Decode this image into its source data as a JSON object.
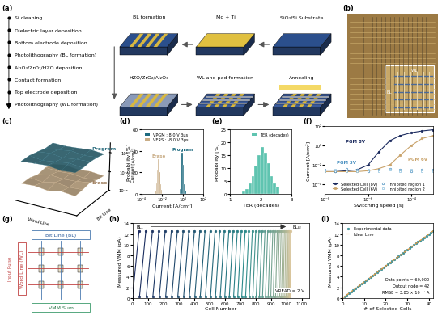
{
  "process": {
    "panel": "(a)",
    "steps": [
      "Si cleaning",
      "Dielectric layer deposition",
      "Bottom electrode deposition",
      "Photolithography (BL formation)",
      "Al₂O₃/ZrO₂/HZO deposition",
      "Contact formation",
      "Top electrode deposition",
      "Photolithography (WL formation)"
    ],
    "schematic_labels": [
      "BL formation",
      "Mo + Ti",
      "SiO₂/Si Substrate",
      "HZO/ZrO₂/Al₂O₃",
      "WL and pad formation",
      "Annealing"
    ]
  },
  "micrograph": {
    "panel": "(b)",
    "labels": [
      "WL",
      "BL"
    ]
  },
  "crossbar": {
    "panel": "(g)",
    "bit_line": "Bit Line (BL)",
    "word_line": "Word Line (WL)",
    "input": "Input Pulse",
    "output": "VMM Sum"
  },
  "chart_data": [
    {
      "panel": "(c)",
      "type": "surface3d",
      "xlabel": "Word Line",
      "ylabel": "Bit Line",
      "zlabel": "Current [A/cm²]",
      "log": true,
      "grid": false,
      "zlim": [
        0.0001,
        10
      ],
      "zticks": [
        {
          "value": 0.0001,
          "label": "10⁻⁴"
        },
        {
          "value": 0.01,
          "label": "10⁻²"
        },
        {
          "value": 1,
          "label": "10⁰"
        }
      ],
      "series": [
        {
          "name": "Program",
          "color": "#2e6f80",
          "values": [
            [
              0.9,
              1.1,
              1.3,
              0.8,
              1.0
            ],
            [
              1.2,
              0.7,
              1.0,
              1.4,
              0.9
            ],
            [
              1.0,
              1.3,
              0.8,
              1.1,
              1.2
            ],
            [
              0.8,
              1.0,
              1.5,
              0.9,
              1.1
            ],
            [
              1.1,
              0.9,
              1.0,
              1.2,
              0.8
            ]
          ]
        },
        {
          "name": "Erase",
          "color": "#c9ad86",
          "values": [
            [
              0.005,
              0.006,
              0.004,
              0.007,
              0.005
            ],
            [
              0.006,
              0.004,
              0.008,
              0.005,
              0.006
            ],
            [
              0.004,
              0.007,
              0.005,
              0.006,
              0.009
            ],
            [
              0.007,
              0.005,
              0.006,
              0.004,
              0.005
            ],
            [
              0.005,
              0.008,
              0.005,
              0.006,
              0.004
            ]
          ]
        }
      ]
    },
    {
      "panel": "(d)",
      "type": "histogram",
      "xlabel": "Current [A/cm²]",
      "ylabel": "Probability [%]",
      "log": "x",
      "grid": false,
      "legend": "upper left",
      "xlim": [
        0.0001,
        100
      ],
      "xticks": [
        {
          "value": 0.0001,
          "label": "10⁻⁴"
        },
        {
          "value": 0.01,
          "label": "10⁻²"
        },
        {
          "value": 1,
          "label": "10⁰"
        },
        {
          "value": 100,
          "label": "10²"
        }
      ],
      "ylim": [
        0,
        60
      ],
      "yticks": [
        0,
        20,
        40,
        60
      ],
      "series": [
        {
          "name": "VPGM : 8.0 V 3μs",
          "label": "Program",
          "color": "#1e6b80",
          "bins": [
            0.5,
            0.63,
            0.79,
            1.0,
            1.26,
            1.58,
            2.0
          ],
          "counts": [
            5,
            18,
            38,
            27,
            9,
            3
          ]
        },
        {
          "name": "VERS : -8.0 V 3μs",
          "label": "Erase",
          "color": "#c9ad86",
          "bins": [
            0.002,
            0.0025,
            0.0032,
            0.004,
            0.005,
            0.0063,
            0.0079,
            0.01
          ],
          "counts": [
            3,
            10,
            22,
            32,
            20,
            9,
            4
          ]
        }
      ]
    },
    {
      "panel": "(e)",
      "type": "histogram",
      "xlabel": "TER (decades)",
      "ylabel": "Probability [%]",
      "grid": false,
      "legend": "upper right",
      "xlim": [
        1,
        3
      ],
      "xticks": [
        1,
        2,
        3
      ],
      "ylim": [
        0,
        25
      ],
      "yticks": [
        0,
        5,
        10,
        15,
        20,
        25
      ],
      "series": [
        {
          "name": "TER (decades)",
          "color": "#5fc4b0",
          "bins": [
            1.4,
            1.5,
            1.6,
            1.7,
            1.8,
            1.9,
            2.0,
            2.1,
            2.2,
            2.3,
            2.4,
            2.5,
            2.6
          ],
          "counts": [
            1,
            2,
            4,
            7,
            11,
            15,
            18,
            16,
            12,
            7,
            4,
            3
          ]
        }
      ]
    },
    {
      "panel": "(f)",
      "type": "line",
      "xlabel": "Switching speed [s]",
      "ylabel": "Current [A/cm²]",
      "log": true,
      "grid": false,
      "legend": "lower center",
      "xlim": [
        1e-08,
        0.001
      ],
      "xticks": [
        {
          "value": 1e-08,
          "label": "10⁻⁸"
        },
        {
          "value": 1e-06,
          "label": "10⁻⁶"
        },
        {
          "value": 0.0001,
          "label": "10⁻⁴"
        }
      ],
      "ylim": [
        1e-05,
        100
      ],
      "yticks": [
        {
          "value": 0.0001,
          "label": "10⁻⁴"
        },
        {
          "value": 0.01,
          "label": "10⁻²"
        },
        {
          "value": 1,
          "label": "10⁰"
        },
        {
          "value": 100,
          "label": "10²"
        }
      ],
      "x": [
        1e-08,
        3e-08,
        1e-07,
        3e-07,
        1e-06,
        3e-06,
        1e-05,
        3e-05,
        0.0001,
        0.0003,
        0.001
      ],
      "series": [
        {
          "name": "Selected Cell (8V)",
          "color": "#1b2a5e",
          "marker": "circle",
          "line_style": "solid",
          "values": [
            0.002,
            0.002,
            0.0025,
            0.003,
            0.01,
            0.2,
            3,
            10,
            20,
            30,
            40
          ]
        },
        {
          "name": "Selected Cell (6V)",
          "color": "#c9a36b",
          "marker": "circle",
          "line_style": "solid",
          "values": [
            0.002,
            0.002,
            0.002,
            0.002,
            0.0025,
            0.004,
            0.01,
            0.1,
            1,
            5,
            10
          ]
        },
        {
          "name": "Inhibited region 1",
          "type": "scatter",
          "color": "#4a90c0",
          "marker": "open circle",
          "line_style": "none",
          "values": [
            0.003,
            0.002,
            0.004,
            0.003,
            0.002,
            0.003,
            0.004,
            0.003,
            0.002,
            0.003,
            0.003
          ]
        },
        {
          "name": "Inhibited region 2",
          "type": "scatter",
          "color": "#8fc1dd",
          "marker": "open square",
          "line_style": "none",
          "values": [
            0.002,
            0.003,
            0.002,
            0.002,
            0.003,
            0.002,
            0.003,
            0.002,
            0.003,
            0.002,
            0.002
          ]
        }
      ],
      "annotations": [
        {
          "text": "PGM 8V",
          "color": "#1b2a5e"
        },
        {
          "text": "PGM 6V",
          "color": "#c9a36b"
        },
        {
          "text": "PGM 3V",
          "color": "#4a90c0"
        }
      ]
    },
    {
      "panel": "(h)",
      "type": "line",
      "xlabel": "Cell Number",
      "ylabel": "Measured VMM (pA)",
      "grid": false,
      "marker": "circle",
      "line_style": "solid",
      "xlim": [
        0,
        1150
      ],
      "xticks": [
        0,
        100,
        200,
        300,
        400,
        500,
        600,
        700,
        800,
        900,
        1000,
        1100
      ],
      "ylim": [
        0,
        14
      ],
      "yticks": [
        0,
        2,
        4,
        6,
        8,
        10,
        12,
        14
      ],
      "annotations": {
        "start": "BL₁",
        "end": "BL₄₂",
        "condition": "VREAD = 2 V"
      },
      "series": [
        {
          "color": "#1b2a5e",
          "x": [
            0,
            42
          ],
          "values": [
            0.3,
            12.6
          ]
        },
        {
          "color": "#1c2f60",
          "x": [
            45,
            86
          ],
          "values": [
            0.3,
            12.6
          ]
        },
        {
          "color": "#1d3462",
          "x": [
            89,
            129
          ],
          "values": [
            0.3,
            12.6
          ]
        },
        {
          "color": "#1d3865",
          "x": [
            132,
            171
          ],
          "values": [
            0.3,
            12.6
          ]
        },
        {
          "color": "#1e3d67",
          "x": [
            174,
            212
          ],
          "values": [
            0.3,
            12.6
          ]
        },
        {
          "color": "#1f4269",
          "x": [
            215,
            252
          ],
          "values": [
            0.3,
            12.6
          ]
        },
        {
          "color": "#20476b",
          "x": [
            255,
            291
          ],
          "values": [
            0.3,
            12.6
          ]
        },
        {
          "color": "#204c6d",
          "x": [
            294,
            329
          ],
          "values": [
            0.3,
            12.6
          ]
        },
        {
          "color": "#215070",
          "x": [
            332,
            366
          ],
          "values": [
            0.3,
            12.6
          ]
        },
        {
          "color": "#225572",
          "x": [
            369,
            402
          ],
          "values": [
            0.3,
            12.6
          ]
        },
        {
          "color": "#235a74",
          "x": [
            405,
            437
          ],
          "values": [
            0.3,
            12.6
          ]
        },
        {
          "color": "#235f76",
          "x": [
            440,
            471
          ],
          "values": [
            0.3,
            12.6
          ]
        },
        {
          "color": "#246478",
          "x": [
            474,
            504
          ],
          "values": [
            0.3,
            12.6
          ]
        },
        {
          "color": "#25687b",
          "x": [
            507,
            536
          ],
          "values": [
            0.3,
            12.6
          ]
        },
        {
          "color": "#266d7d",
          "x": [
            539,
            567
          ],
          "values": [
            0.3,
            12.6
          ]
        },
        {
          "color": "#26727f",
          "x": [
            570,
            597
          ],
          "values": [
            0.3,
            12.6
          ]
        },
        {
          "color": "#277781",
          "x": [
            600,
            626
          ],
          "values": [
            0.3,
            12.6
          ]
        },
        {
          "color": "#287c83",
          "x": [
            629,
            654
          ],
          "values": [
            0.3,
            12.6
          ]
        },
        {
          "color": "#298086",
          "x": [
            657,
            681
          ],
          "values": [
            0.3,
            12.6
          ]
        },
        {
          "color": "#298588",
          "x": [
            684,
            707
          ],
          "values": [
            0.3,
            12.6
          ]
        },
        {
          "color": "#2a8a8a",
          "x": [
            710,
            732
          ],
          "values": [
            0.3,
            12.6
          ]
        },
        {
          "color": "#328d8b",
          "x": [
            735,
            756
          ],
          "values": [
            0.3,
            12.6
          ]
        },
        {
          "color": "#3b908c",
          "x": [
            759,
            779
          ],
          "values": [
            0.3,
            12.6
          ]
        },
        {
          "color": "#43928c",
          "x": [
            782,
            801
          ],
          "values": [
            0.3,
            12.6
          ]
        },
        {
          "color": "#4b958d",
          "x": [
            804,
            822
          ],
          "values": [
            0.3,
            12.6
          ]
        },
        {
          "color": "#53988e",
          "x": [
            825,
            842
          ],
          "values": [
            0.3,
            12.6
          ]
        },
        {
          "color": "#5c9b8f",
          "x": [
            845,
            861
          ],
          "values": [
            0.3,
            12.6
          ]
        },
        {
          "color": "#649d8f",
          "x": [
            864,
            879
          ],
          "values": [
            0.3,
            12.6
          ]
        },
        {
          "color": "#6ca090",
          "x": [
            882,
            896
          ],
          "values": [
            0.3,
            12.6
          ]
        },
        {
          "color": "#75a391",
          "x": [
            899,
            912
          ],
          "values": [
            0.3,
            12.6
          ]
        },
        {
          "color": "#7da692",
          "x": [
            915,
            927
          ],
          "values": [
            0.3,
            12.6
          ]
        },
        {
          "color": "#85a892",
          "x": [
            930,
            941
          ],
          "values": [
            0.3,
            12.6
          ]
        },
        {
          "color": "#8dab93",
          "x": [
            944,
            954
          ],
          "values": [
            0.3,
            12.6
          ]
        },
        {
          "color": "#96ae94",
          "x": [
            957,
            966
          ],
          "values": [
            0.3,
            12.6
          ]
        },
        {
          "color": "#9eb195",
          "x": [
            969,
            977
          ],
          "values": [
            0.3,
            12.6
          ]
        },
        {
          "color": "#a6b495",
          "x": [
            980,
            987
          ],
          "values": [
            0.3,
            12.6
          ]
        },
        {
          "color": "#afb696",
          "x": [
            990,
            996
          ],
          "values": [
            0.3,
            12.6
          ]
        },
        {
          "color": "#b7b997",
          "x": [
            999,
            1004
          ],
          "values": [
            0.3,
            12.6
          ]
        },
        {
          "color": "#bfbc98",
          "x": [
            1007,
            1011
          ],
          "values": [
            0.3,
            12.6
          ]
        },
        {
          "color": "#c7bf98",
          "x": [
            1014,
            1017
          ],
          "values": [
            0.3,
            12.6
          ]
        },
        {
          "color": "#d0c199",
          "x": [
            1020,
            1022
          ],
          "values": [
            0.3,
            12.6
          ]
        },
        {
          "color": "#d8c49a",
          "x": [
            1025,
            1027
          ],
          "values": [
            0.3,
            12.6
          ]
        }
      ]
    },
    {
      "panel": "(i)",
      "type": "scatter",
      "xlabel": "# of Selected Cells",
      "ylabel": "Measured VMM (pA)",
      "grid": false,
      "legend": "upper left",
      "xlim": [
        0,
        42
      ],
      "xticks": [
        0,
        10,
        20,
        30,
        40
      ],
      "ylim": [
        0,
        14
      ],
      "yticks": [
        0,
        2,
        4,
        6,
        8,
        10,
        12,
        14
      ],
      "annotations": [
        "Data points = 60,000",
        "Output node = 42",
        "RMSE = 3.85 × 10⁻¹³ A"
      ],
      "series": [
        {
          "name": "Experimental data",
          "type": "scatter",
          "color": "#3a8f95",
          "marker": "circle",
          "line_style": "none",
          "x": [
            1,
            2,
            3,
            4,
            5,
            6,
            7,
            8,
            9,
            10,
            11,
            12,
            13,
            14,
            15,
            16,
            17,
            18,
            19,
            20,
            21,
            22,
            23,
            24,
            25,
            26,
            27,
            28,
            29,
            30,
            31,
            32,
            33,
            34,
            35,
            36,
            37,
            38,
            39,
            40,
            41,
            42
          ],
          "values": [
            0.31,
            0.61,
            0.9,
            1.21,
            1.5,
            1.8,
            2.11,
            2.4,
            2.7,
            3.01,
            3.3,
            3.6,
            3.91,
            4.2,
            4.49,
            4.8,
            5.11,
            5.4,
            5.69,
            6.0,
            6.31,
            6.6,
            6.9,
            7.21,
            7.5,
            7.79,
            8.1,
            8.41,
            8.7,
            9.0,
            9.29,
            9.6,
            9.91,
            10.2,
            10.5,
            10.79,
            11.1,
            11.4,
            11.71,
            12.0,
            12.29,
            12.6
          ]
        },
        {
          "name": "Ideal Line",
          "type": "line",
          "color": "#e8963c",
          "marker": "none",
          "line_style": "dashed",
          "x": [
            0,
            42
          ],
          "values": [
            0,
            12.6
          ]
        }
      ]
    }
  ]
}
